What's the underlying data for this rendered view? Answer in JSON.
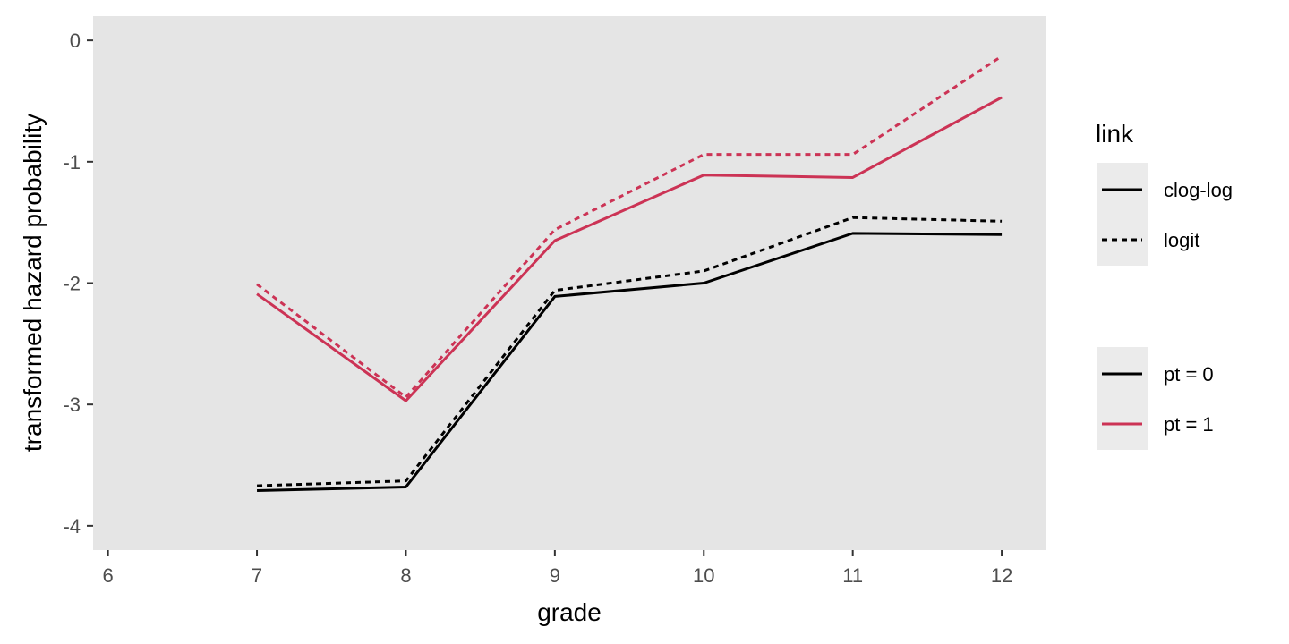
{
  "chart_data": {
    "type": "line",
    "xlabel": "grade",
    "ylabel": "transformed hazard probability",
    "xlim": [
      5.9,
      12.3
    ],
    "ylim": [
      -4.2,
      0.2
    ],
    "xticks": [
      6,
      7,
      8,
      9,
      10,
      11,
      12
    ],
    "yticks": [
      0,
      -1,
      -2,
      -3,
      -4
    ],
    "x": [
      7,
      8,
      9,
      10,
      11,
      12
    ],
    "grid": false,
    "background": "#e5e5e5",
    "colors": {
      "pt0": "#000000",
      "pt1": "#cc3355"
    },
    "series": [
      {
        "name": "pt = 0, clog-log",
        "link": "clog-log",
        "pt": "0",
        "values": [
          -3.71,
          -3.68,
          -2.11,
          -2.0,
          -1.59,
          -1.6
        ]
      },
      {
        "name": "pt = 0, logit",
        "link": "logit",
        "pt": "0",
        "values": [
          -3.67,
          -3.63,
          -2.06,
          -1.9,
          -1.46,
          -1.49
        ]
      },
      {
        "name": "pt = 1, clog-log",
        "link": "clog-log",
        "pt": "1",
        "values": [
          -2.09,
          -2.97,
          -1.65,
          -1.11,
          -1.13,
          -0.47
        ]
      },
      {
        "name": "pt = 1, logit",
        "link": "logit",
        "pt": "1",
        "values": [
          -2.01,
          -2.94,
          -1.56,
          -0.94,
          -0.94,
          -0.13
        ]
      }
    ],
    "legend": {
      "position": "right",
      "link": {
        "title": "link",
        "items": [
          "clog-log",
          "logit"
        ]
      },
      "pt": {
        "items": [
          "pt = 0",
          "pt = 1"
        ]
      }
    }
  }
}
